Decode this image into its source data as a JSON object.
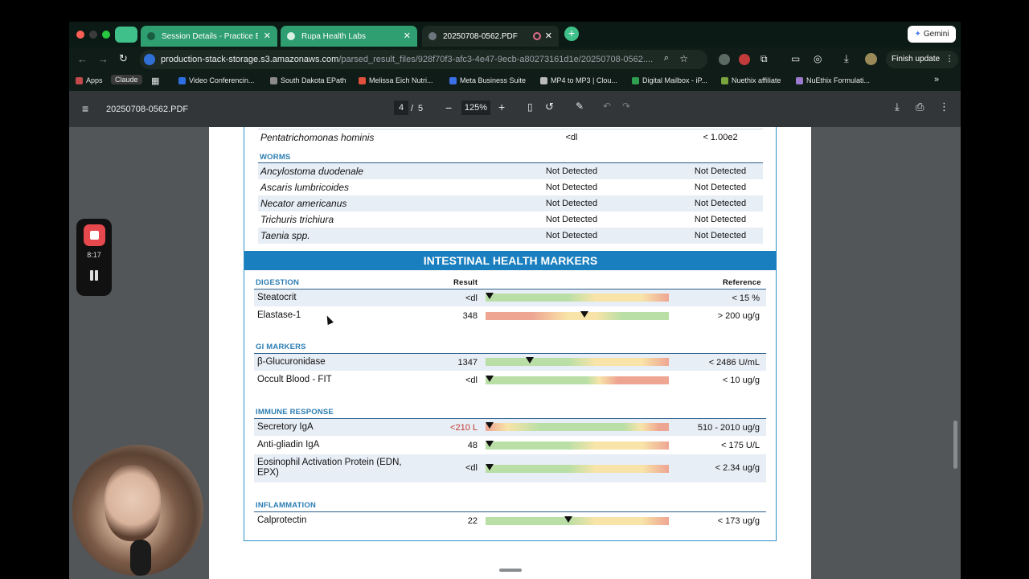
{
  "tabs": [
    {
      "label": "Session Details - Practice Be",
      "active": false
    },
    {
      "label": "Rupa Health Labs",
      "active": false
    },
    {
      "label": "20250708-0562.PDF",
      "active": true
    }
  ],
  "gemini_label": "Gemini",
  "address": {
    "host": "production-stack-storage.s3.amazonaws.com",
    "path": "/parsed_result_files/928f70f3-afc3-4e47-9ecb-a80273161d1e/20250708-0562...."
  },
  "finish_update": "Finish update",
  "bookmarks": [
    "Apps",
    "Claude",
    "Video Conferencin...",
    "South Dakota EPath",
    "Melissa Eich Nutri...",
    "Meta Business Suite",
    "MP4 to MP3 | Clou...",
    "Digital Mailbox - iP...",
    "Nuethix affiliate",
    "NuEthix Formulati..."
  ],
  "pdf": {
    "filename": "20250708-0562.PDF",
    "page_current": "4",
    "page_sep": "/",
    "page_total": "5",
    "zoom": "125%"
  },
  "recording": {
    "time": "8:17"
  },
  "report": {
    "top_row": {
      "name": "Pentatrichomonas hominis",
      "result": "<dl",
      "reference": "< 1.00e2"
    },
    "worms_title": "WORMS",
    "worms": [
      {
        "name": "Ancylostoma duodenale",
        "result": "Not Detected",
        "reference": "Not Detected"
      },
      {
        "name": "Ascaris lumbricoides",
        "result": "Not Detected",
        "reference": "Not Detected"
      },
      {
        "name": "Necator americanus",
        "result": "Not Detected",
        "reference": "Not Detected"
      },
      {
        "name": "Trichuris trichiura",
        "result": "Not Detected",
        "reference": "Not Detected"
      },
      {
        "name": "Taenia spp.",
        "result": "Not Detected",
        "reference": "Not Detected"
      }
    ],
    "ihm_title": "INTESTINAL HEALTH MARKERS",
    "result_header": "Result",
    "reference_header": "Reference",
    "sections": [
      {
        "title": "DIGESTION",
        "rows": [
          {
            "name": "Steatocrit",
            "value": "<dl",
            "reference": "< 15 %",
            "scale": "good-to-bad",
            "marker": 0.02
          },
          {
            "name": "Elastase-1",
            "value": "348",
            "reference": "> 200 ug/g",
            "scale": "bad-to-good",
            "marker": 0.54
          }
        ]
      },
      {
        "title": "GI MARKERS",
        "rows": [
          {
            "name": "β-Glucuronidase",
            "value": "1347",
            "reference": "< 2486 U/mL",
            "scale": "good-to-bad",
            "marker": 0.24
          },
          {
            "name": "Occult Blood - FIT",
            "value": "<dl",
            "reference": "< 10 ug/g",
            "scale": "good-to-bad-short",
            "marker": 0.02
          }
        ]
      },
      {
        "title": "IMMUNE RESPONSE",
        "rows": [
          {
            "name": "Secretory IgA",
            "value": "<210 L",
            "low": true,
            "reference": "510 - 2010 ug/g",
            "scale": "bad-good-bad",
            "marker": 0.02
          },
          {
            "name": "Anti-gliadin IgA",
            "value": "48",
            "reference": "< 175 U/L",
            "scale": "good-to-bad",
            "marker": 0.02
          },
          {
            "name": "Eosinophil Activation Protein (EDN, EPX)",
            "value": "<dl",
            "reference": "< 2.34 ug/g",
            "scale": "good-to-bad",
            "marker": 0.02
          }
        ]
      },
      {
        "title": "INFLAMMATION",
        "rows": [
          {
            "name": "Calprotectin",
            "value": "22",
            "reference": "< 173 ug/g",
            "scale": "good-to-bad",
            "marker": 0.45
          }
        ]
      }
    ]
  }
}
